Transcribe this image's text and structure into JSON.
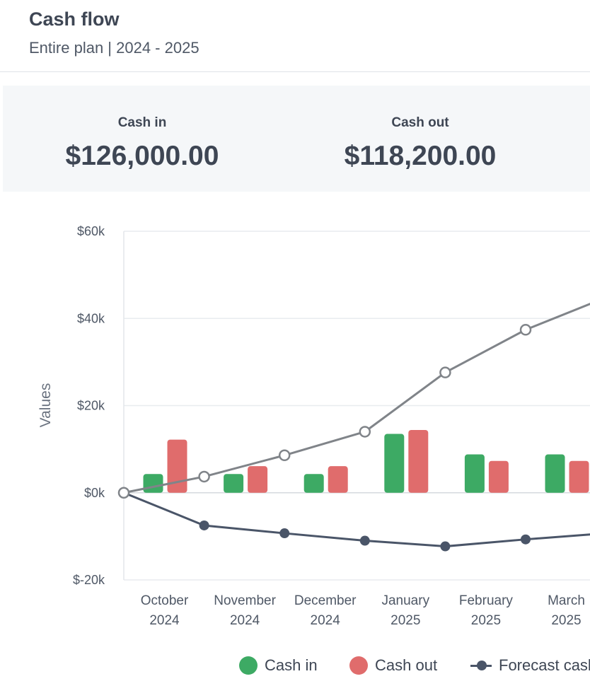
{
  "header": {
    "title": "Cash flow",
    "subtitle": "Entire plan | 2024 - 2025"
  },
  "summary": {
    "cash_in_label": "Cash in",
    "cash_in_value": "$126,000.00",
    "cash_out_label": "Cash out",
    "cash_out_value": "$118,200.00"
  },
  "chart_data": {
    "type": "bar",
    "ylabel": "Values",
    "ylim": [
      -20000,
      60000
    ],
    "yticks": [
      60000,
      40000,
      20000,
      0,
      -20000
    ],
    "ytick_labels": [
      "$60k",
      "$40k",
      "$20k",
      "$0k",
      "$-20k"
    ],
    "grid": true,
    "legend_position": "bottom",
    "categories": [
      {
        "month": "October",
        "year": "2024"
      },
      {
        "month": "November",
        "year": "2024"
      },
      {
        "month": "December",
        "year": "2024"
      },
      {
        "month": "January",
        "year": "2025"
      },
      {
        "month": "February",
        "year": "2025"
      },
      {
        "month": "March",
        "year": "2025"
      }
    ],
    "series": [
      {
        "name": "Cash in",
        "type": "bar",
        "color": "#3daa64",
        "values": [
          4300,
          4300,
          4300,
          13500,
          8800,
          8800
        ]
      },
      {
        "name": "Cash out",
        "type": "bar",
        "color": "#e06c6c",
        "values": [
          12200,
          6100,
          6100,
          14400,
          7300,
          7300
        ]
      },
      {
        "name": "Forecast cash",
        "type": "line",
        "color": "#4a5568",
        "start": 0,
        "values": [
          -7500,
          -9300,
          -11000,
          -12300,
          -10700,
          -9300
        ]
      },
      {
        "type": "line",
        "color": "#808489",
        "marker": "hollow",
        "start": 0,
        "values": [
          3700,
          8600,
          14000,
          27600,
          37400,
          44800
        ]
      }
    ]
  },
  "legend": {
    "cash_in": "Cash in",
    "cash_out": "Cash out",
    "forecast": "Forecast cash"
  }
}
